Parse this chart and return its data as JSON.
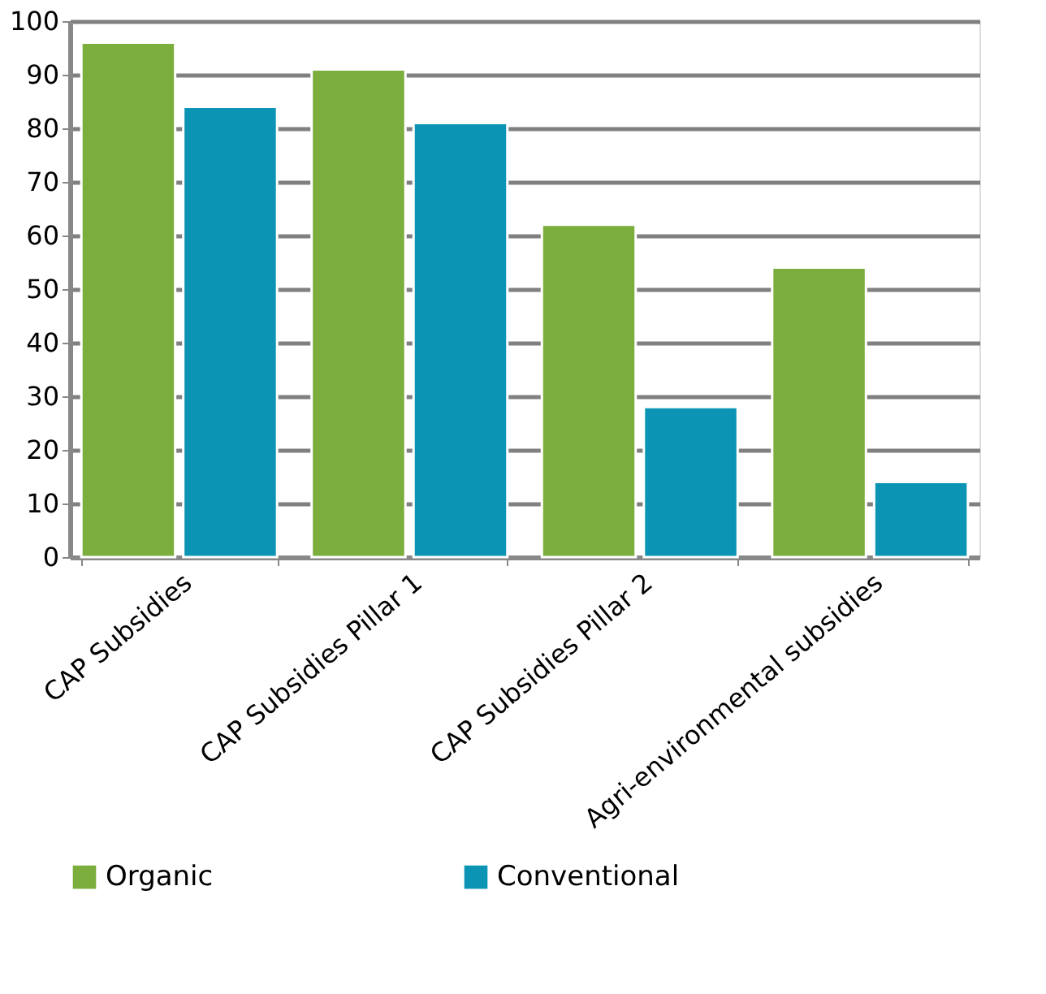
{
  "chart_data": {
    "type": "bar",
    "categories": [
      "CAP Subsidies",
      "CAP Subsidies Pillar 1",
      "CAP Subsidies Pillar 2",
      "Agri-environmental subsidies"
    ],
    "series": [
      {
        "name": "Organic",
        "color": "#7cae3e",
        "values": [
          96,
          91,
          62,
          54
        ]
      },
      {
        "name": "Conventional",
        "color": "#0c94b4",
        "values": [
          84,
          81,
          28,
          14
        ]
      }
    ],
    "ylim": [
      0,
      100
    ],
    "yticks": [
      0,
      10,
      20,
      30,
      40,
      50,
      60,
      70,
      80,
      90,
      100
    ],
    "grid": "y",
    "legend": "bottom"
  }
}
